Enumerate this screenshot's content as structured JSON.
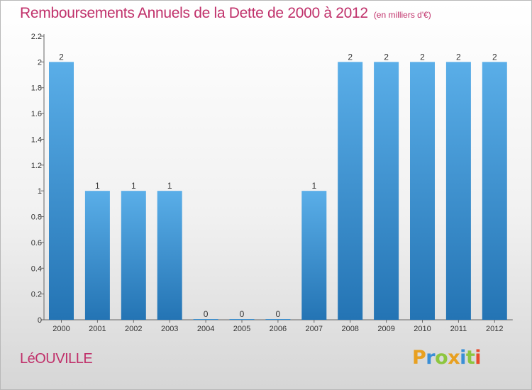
{
  "header": {
    "title": "Remboursements Annuels de la Dette de 2000 à 2012",
    "unit": "(en milliers d'€)"
  },
  "footer": {
    "city": "LéOUVILLE",
    "logo": {
      "letters": [
        "P",
        "r",
        "o",
        "x",
        "i",
        "t",
        "i"
      ],
      "colors": [
        "#e8a020",
        "#3a8fd6",
        "#8dc63f",
        "#e8a020",
        "#3a8fd6",
        "#8dc63f",
        "#e84a2a"
      ]
    }
  },
  "chart_data": {
    "type": "bar",
    "title": "Remboursements Annuels de la Dette de 2000 à 2012",
    "ylabel": "(en milliers d'€)",
    "xlabel": "",
    "categories": [
      "2000",
      "2001",
      "2002",
      "2003",
      "2004",
      "2005",
      "2006",
      "2007",
      "2008",
      "2009",
      "2010",
      "2011",
      "2012"
    ],
    "values": [
      2,
      1,
      1,
      1,
      0,
      0,
      0,
      1,
      2,
      2,
      2,
      2,
      2
    ],
    "data_labels": [
      "2",
      "1",
      "1",
      "1",
      "0",
      "0",
      "0",
      "1",
      "2",
      "2",
      "2",
      "2",
      "2"
    ],
    "ylim": [
      0,
      2.2
    ],
    "yticks": [
      0,
      0.2,
      0.4,
      0.6,
      0.8,
      1,
      1.2,
      1.4,
      1.6,
      1.8,
      2,
      2.2
    ],
    "ytick_labels": [
      "0",
      "0.2",
      "0.4",
      "0.6",
      "0.8",
      "1",
      "1.2",
      "1.4",
      "1.6",
      "1.8",
      "2",
      "2.2"
    ],
    "colors": {
      "bar_top": "#5aaee8",
      "bar_bottom": "#2474b4",
      "axis": "#666666",
      "text": "#333333"
    },
    "grid": false,
    "legend": "none"
  }
}
